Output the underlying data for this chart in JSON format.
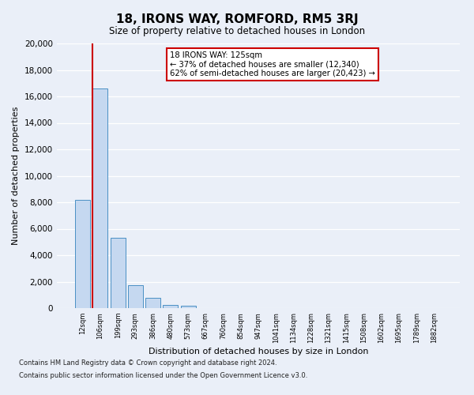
{
  "title": "18, IRONS WAY, ROMFORD, RM5 3RJ",
  "subtitle": "Size of property relative to detached houses in London",
  "xlabel": "Distribution of detached houses by size in London",
  "ylabel": "Number of detached properties",
  "bar_labels": [
    "12sqm",
    "106sqm",
    "199sqm",
    "293sqm",
    "386sqm",
    "480sqm",
    "573sqm",
    "667sqm",
    "760sqm",
    "854sqm",
    "947sqm",
    "1041sqm",
    "1134sqm",
    "1228sqm",
    "1321sqm",
    "1415sqm",
    "1508sqm",
    "1602sqm",
    "1695sqm",
    "1789sqm",
    "1882sqm"
  ],
  "bar_values": [
    8200,
    16600,
    5300,
    1750,
    750,
    250,
    200,
    0,
    0,
    0,
    0,
    0,
    0,
    0,
    0,
    0,
    0,
    0,
    0,
    0,
    0
  ],
  "bar_color": "#c5d8f0",
  "bar_edge_color": "#4a90c4",
  "highlight_line_color": "#cc0000",
  "annotation_line1": "18 IRONS WAY: 125sqm",
  "annotation_line2": "← 37% of detached houses are smaller (12,340)",
  "annotation_line3": "62% of semi-detached houses are larger (20,423) →",
  "annotation_box_color": "#ffffff",
  "annotation_box_edge": "#cc0000",
  "ylim": [
    0,
    20000
  ],
  "yticks": [
    0,
    2000,
    4000,
    6000,
    8000,
    10000,
    12000,
    14000,
    16000,
    18000,
    20000
  ],
  "background_color": "#eaeff8",
  "plot_bg_color": "#eaeff8",
  "grid_color": "#ffffff",
  "footer_line1": "Contains HM Land Registry data © Crown copyright and database right 2024.",
  "footer_line2": "Contains public sector information licensed under the Open Government Licence v3.0."
}
